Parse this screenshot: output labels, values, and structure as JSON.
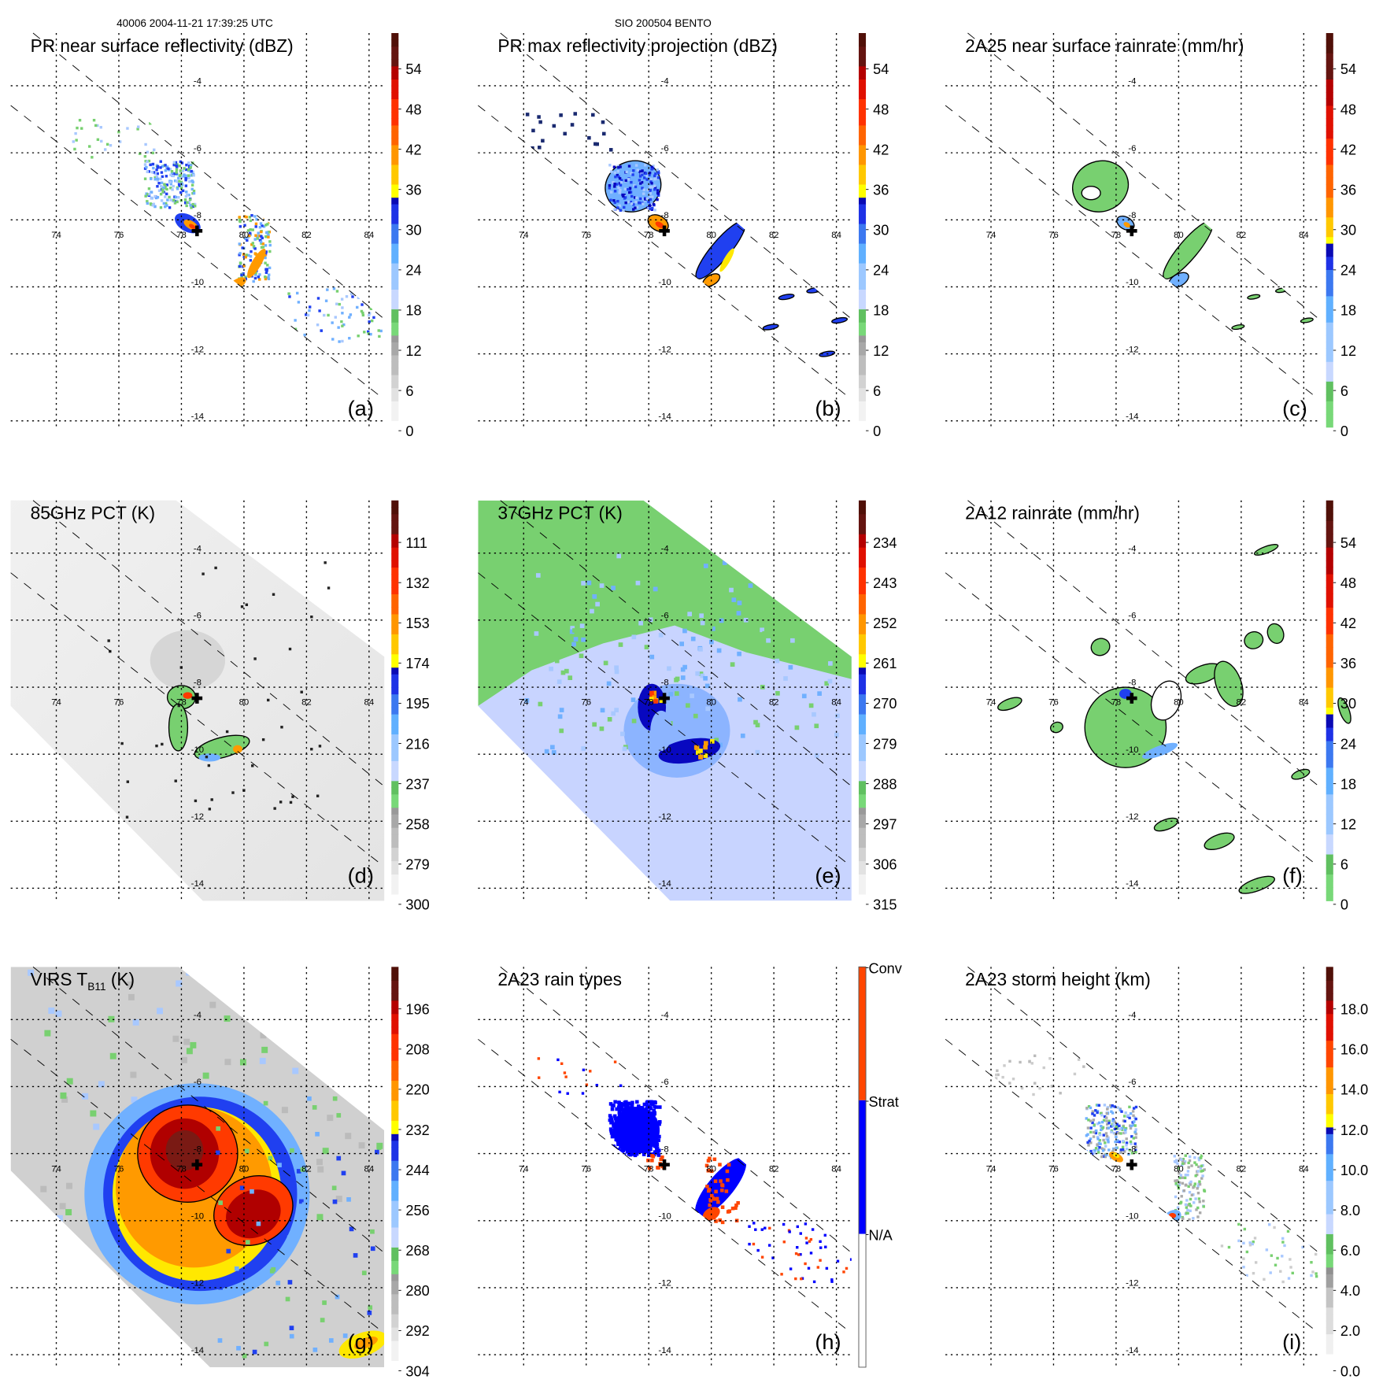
{
  "header": {
    "left": "40006 2004-11-21 17:39:25 UTC",
    "center": "SIO 200504 BENTO"
  },
  "axes": {
    "lon_labels": [
      "74",
      "76",
      "78",
      "80",
      "82",
      "84"
    ],
    "lat_labels": [
      "-4",
      "-6",
      "-8",
      "-10",
      "-12",
      "-14"
    ]
  },
  "chart_data": {
    "type": "heatmap",
    "description_grid": "3x3 panels of satellite-derived fields over a storm centre",
    "center_marker": {
      "lon": 78.5,
      "lat": -8.3
    },
    "lon_range": [
      72.5,
      84.5
    ],
    "lat_range": [
      -2.6,
      -15.0
    ]
  },
  "panels": [
    {
      "id": "a",
      "title": "PR near surface reflectivity (dBZ)",
      "letter": "(a)",
      "scale": "std",
      "colorbar": {
        "labels": [
          "0",
          "6",
          "12",
          "18",
          "24",
          "30",
          "36",
          "42",
          "48",
          "54"
        ]
      }
    },
    {
      "id": "b",
      "title": "PR max reflectivity projection (dBZ)",
      "letter": "(b)",
      "scale": "std",
      "colorbar": {
        "labels": [
          "0",
          "6",
          "12",
          "18",
          "24",
          "30",
          "36",
          "42",
          "48",
          "54"
        ]
      }
    },
    {
      "id": "c",
      "title": "2A25 near surface rainrate (mm/hr)",
      "letter": "(c)",
      "scale": "rain",
      "colorbar": {
        "labels": [
          "0",
          "6",
          "12",
          "18",
          "24",
          "30",
          "36",
          "42",
          "48",
          "54"
        ]
      }
    },
    {
      "id": "d",
      "title": "85GHz PCT (K)",
      "letter": "(d)",
      "scale": "std",
      "colorbar": {
        "labels": [
          "300",
          "279",
          "258",
          "237",
          "216",
          "195",
          "174",
          "153",
          "132",
          "111"
        ]
      }
    },
    {
      "id": "e",
      "title": "37GHz PCT (K)",
      "letter": "(e)",
      "scale": "std",
      "colorbar": {
        "labels": [
          "315",
          "306",
          "297",
          "288",
          "279",
          "270",
          "261",
          "252",
          "243",
          "234"
        ]
      }
    },
    {
      "id": "f",
      "title": "2A12 rainrate (mm/hr)",
      "letter": "(f)",
      "scale": "rain",
      "colorbar": {
        "labels": [
          "0",
          "6",
          "12",
          "18",
          "24",
          "30",
          "36",
          "42",
          "48",
          "54"
        ]
      }
    },
    {
      "id": "g",
      "title": "VIRS T",
      "title_sub": "B11",
      "title_suffix": " (K)",
      "letter": "(g)",
      "scale": "std",
      "colorbar": {
        "labels": [
          "304",
          "292",
          "280",
          "268",
          "256",
          "244",
          "232",
          "220",
          "208",
          "196"
        ]
      }
    },
    {
      "id": "h",
      "title": "2A23 rain types",
      "letter": "(h)",
      "scale": "types",
      "colorbar": {
        "labels": [
          "N/A",
          "Strat",
          "Conv"
        ]
      }
    },
    {
      "id": "i",
      "title": "2A23 storm height (km)",
      "letter": "(i)",
      "scale": "height",
      "colorbar": {
        "labels": [
          "0.0",
          "2.0",
          "4.0",
          "6.0",
          "8.0",
          "10.0",
          "12.0",
          "14.0",
          "16.0",
          "18.0"
        ]
      }
    }
  ]
}
